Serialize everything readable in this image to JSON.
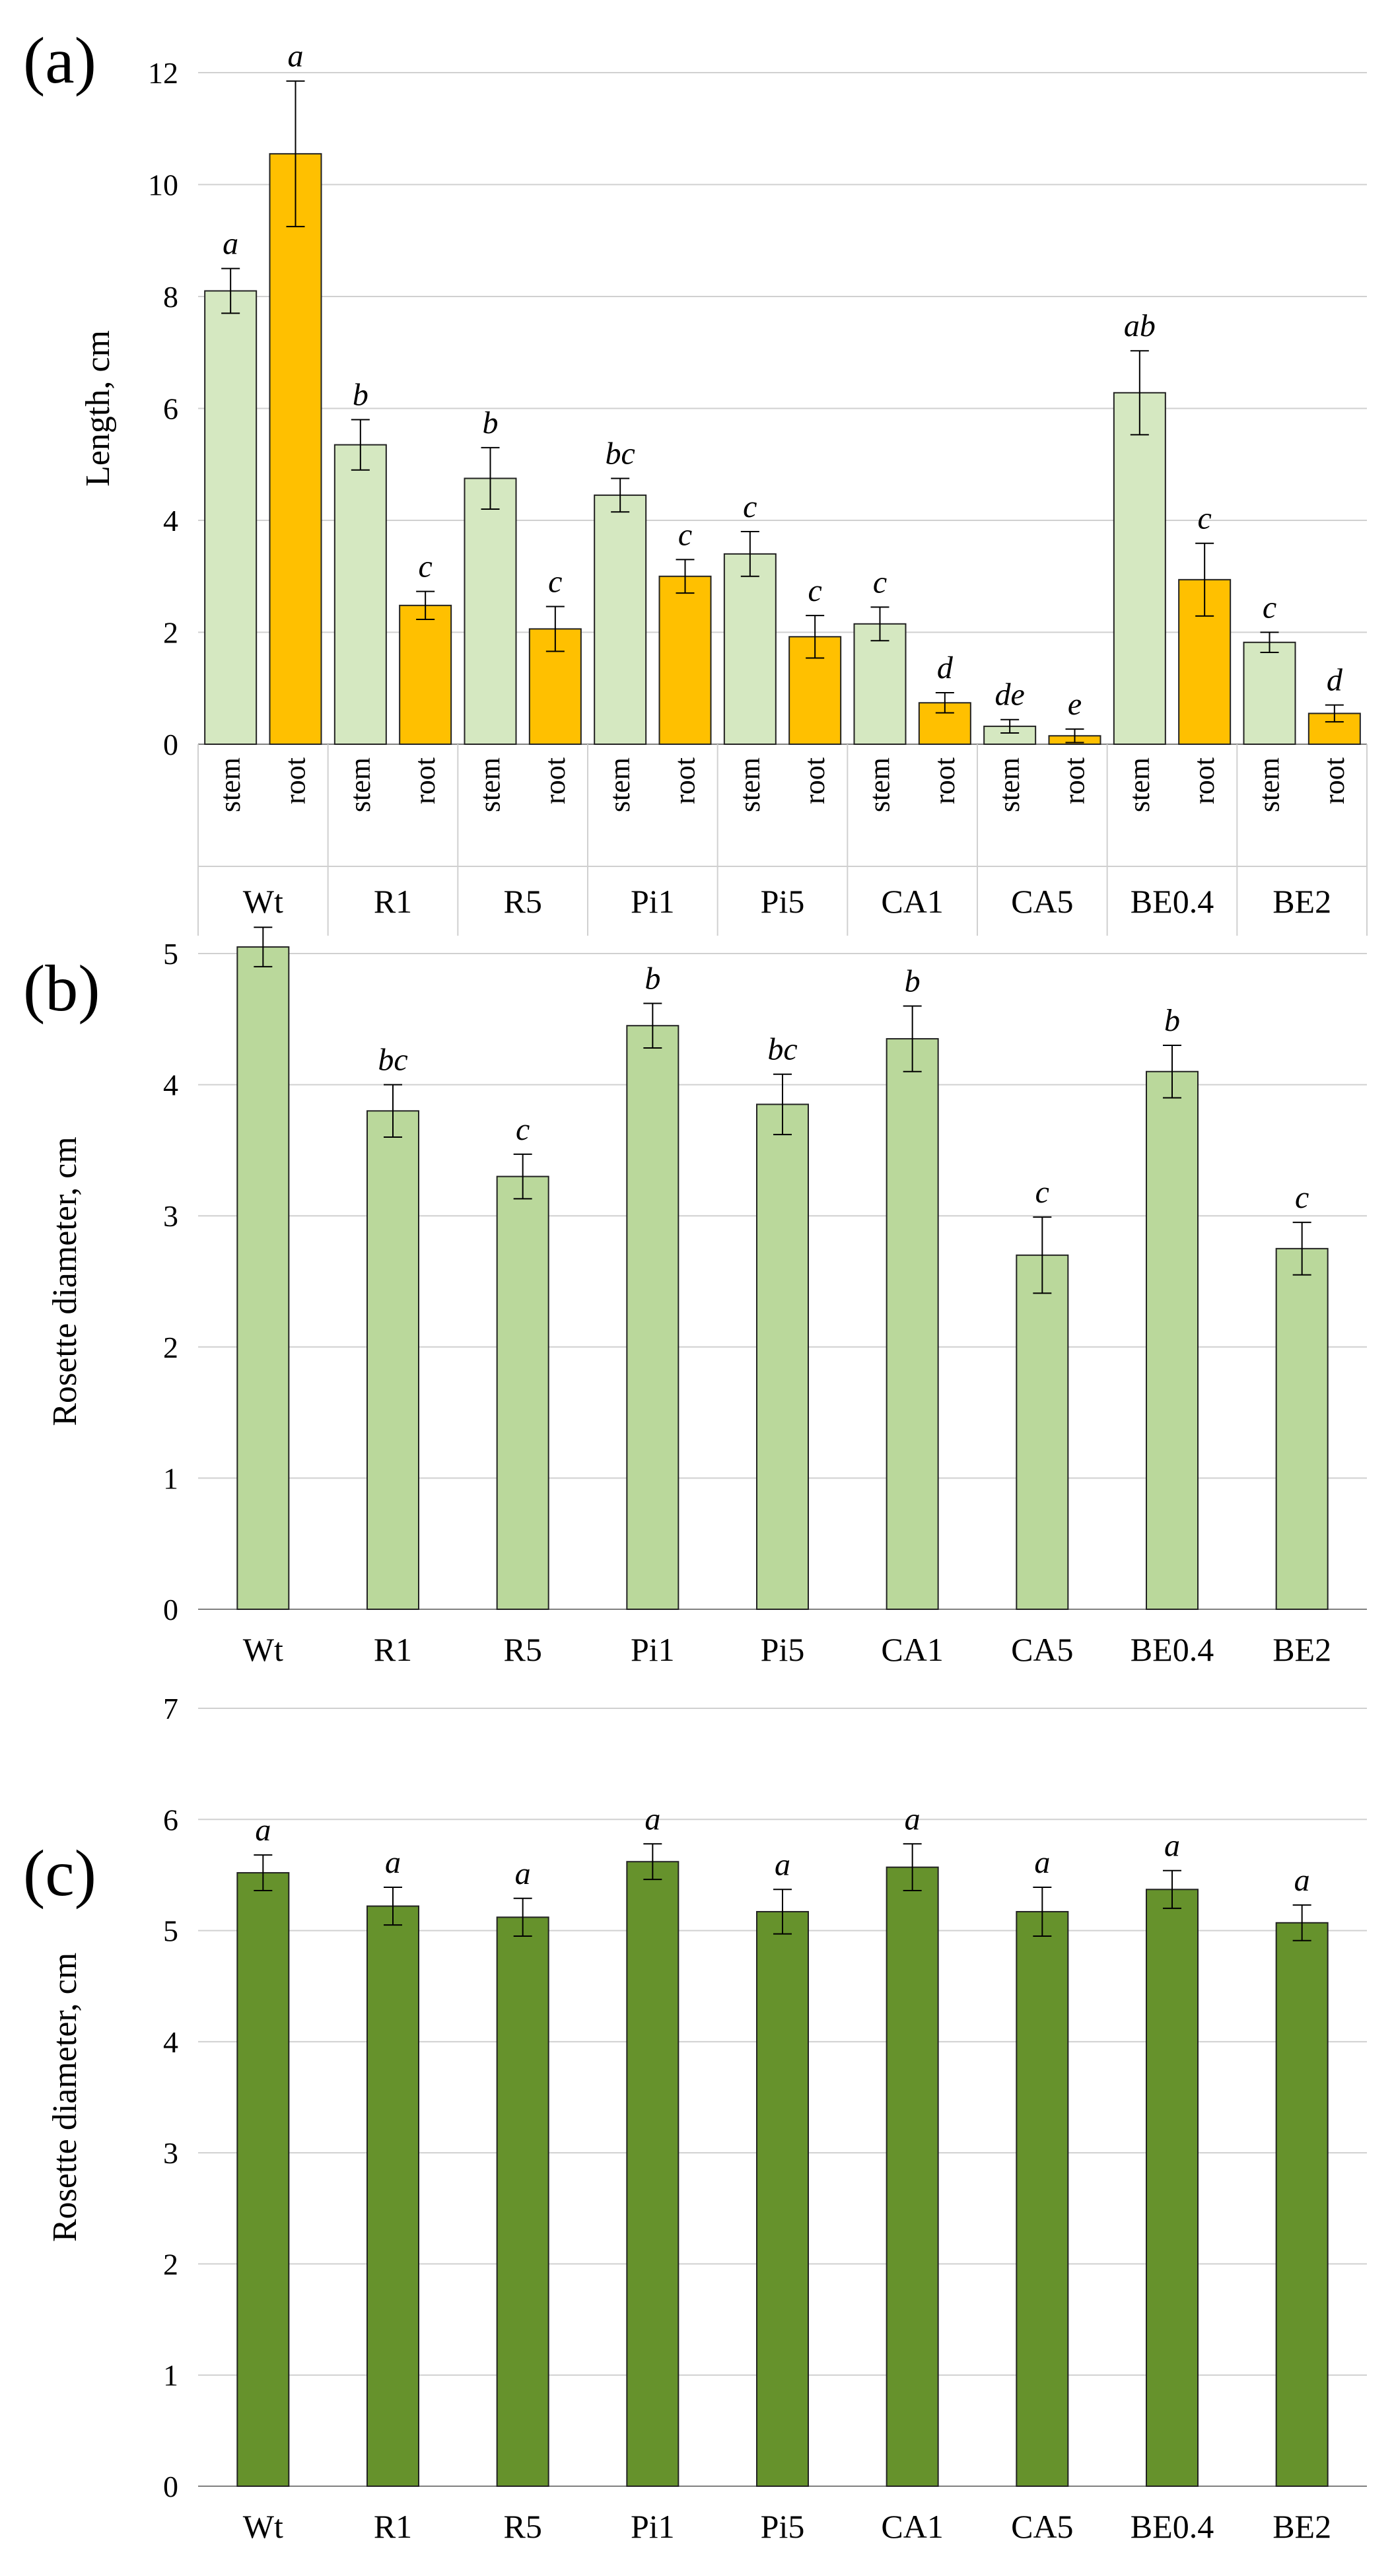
{
  "panel_labels": [
    "(a)",
    "(b)",
    "(c)"
  ],
  "colors": {
    "stem": "#d5e8c1",
    "root": "#ffc000",
    "panel_b": "#bad89b",
    "panel_c": "#66922c"
  },
  "chart_data": [
    {
      "id": "a",
      "type": "bar",
      "title": "",
      "ylabel": "Length, cm",
      "ylim": [
        0,
        12
      ],
      "yticks": [
        "0",
        "2",
        "4",
        "6",
        "8",
        "10",
        "12"
      ],
      "categories": [
        "Wt",
        "R1",
        "R5",
        "Pi1",
        "Pi5",
        "CA1",
        "CA5",
        "BE0.4",
        "BE2"
      ],
      "subcategories": [
        "stem",
        "root"
      ],
      "series": [
        {
          "name": "stem",
          "values": [
            8.1,
            5.35,
            4.75,
            4.45,
            3.4,
            2.15,
            0.32,
            6.28,
            1.82
          ],
          "errors": [
            0.4,
            0.45,
            0.55,
            0.3,
            0.4,
            0.3,
            0.12,
            0.75,
            0.18
          ],
          "labels": [
            "a",
            "b",
            "b",
            "bc",
            "c",
            "c",
            "de",
            "ab",
            "c"
          ]
        },
        {
          "name": "root",
          "values": [
            10.55,
            2.48,
            2.06,
            3.0,
            1.92,
            0.74,
            0.15,
            2.94,
            0.55
          ],
          "errors": [
            1.3,
            0.25,
            0.4,
            0.3,
            0.38,
            0.18,
            0.12,
            0.65,
            0.15
          ],
          "labels": [
            "a",
            "c",
            "c",
            "c",
            "c",
            "d",
            "e",
            "c",
            "d"
          ]
        }
      ]
    },
    {
      "id": "b",
      "type": "bar",
      "title": "",
      "ylabel": "Rosette diameter, cm",
      "ylim": [
        0,
        5
      ],
      "yticks": [
        "0",
        "1",
        "2",
        "3",
        "4",
        "5"
      ],
      "categories": [
        "Wt",
        "R1",
        "R5",
        "Pi1",
        "Pi5",
        "CA1",
        "CA5",
        "BE0.4",
        "BE2"
      ],
      "values": [
        5.05,
        3.8,
        3.3,
        4.45,
        3.85,
        4.35,
        2.7,
        4.1,
        2.75
      ],
      "errors": [
        0.15,
        0.2,
        0.17,
        0.17,
        0.23,
        0.25,
        0.29,
        0.2,
        0.2
      ],
      "labels": [
        "",
        "bc",
        "c",
        "b",
        "bc",
        "b",
        "c",
        "b",
        "c"
      ]
    },
    {
      "id": "c",
      "type": "bar",
      "title": "",
      "ylabel": "Rosette diameter, cm",
      "ylim": [
        0,
        7
      ],
      "yticks": [
        "0",
        "1",
        "2",
        "3",
        "4",
        "5",
        "6",
        "7"
      ],
      "categories": [
        "Wt",
        "R1",
        "R5",
        "Pi1",
        "Pi5",
        "CA1",
        "CA5",
        "BE0.4",
        "BE2"
      ],
      "values": [
        5.52,
        5.22,
        5.12,
        5.62,
        5.17,
        5.57,
        5.17,
        5.37,
        5.07
      ],
      "errors": [
        0.16,
        0.17,
        0.17,
        0.16,
        0.2,
        0.21,
        0.22,
        0.17,
        0.16
      ],
      "labels": [
        "a",
        "a",
        "a",
        "a",
        "a",
        "a",
        "a",
        "a",
        "a"
      ]
    }
  ]
}
